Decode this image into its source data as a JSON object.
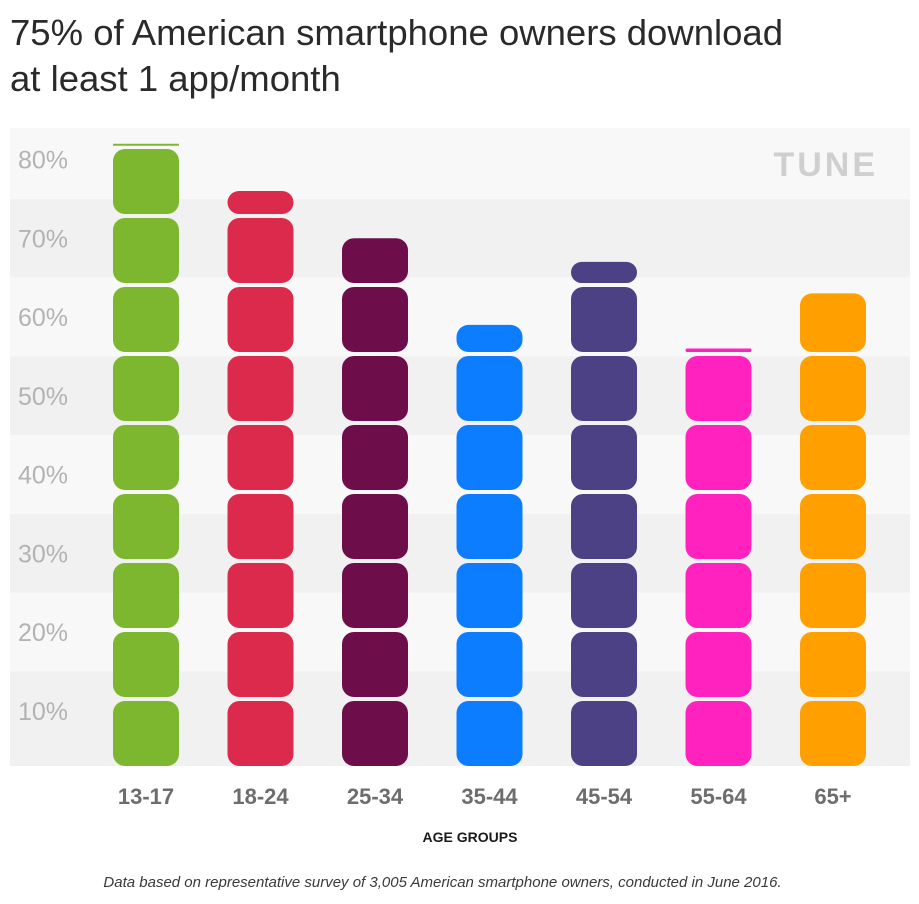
{
  "title_lines": [
    "75% of American smartphone owners download",
    "at least 1 app/month"
  ],
  "brand": "TUNE",
  "footnote": "Data based on representative survey of 3,005 American smartphone owners, conducted in June 2016.",
  "chart_data": {
    "type": "bar",
    "title": "75% of American smartphone owners download at least 1 app/month",
    "xlabel": "AGE GROUPS",
    "ylabel": "",
    "categories": [
      "13-17",
      "18-24",
      "25-34",
      "35-44",
      "45-54",
      "55-64",
      "65+"
    ],
    "values": [
      82,
      76,
      70,
      59,
      67,
      56,
      63
    ],
    "colors": [
      "#7db72f",
      "#db2a4b",
      "#6d0e4b",
      "#0d7dff",
      "#4c4185",
      "#ff22bf",
      "#ffa000"
    ],
    "ylim": [
      3,
      84
    ],
    "yticks": [
      10,
      20,
      30,
      40,
      50,
      60,
      70,
      80
    ],
    "ytick_labels": [
      "10%",
      "20%",
      "30%",
      "40%",
      "50%",
      "60%",
      "70%",
      "80%"
    ],
    "grid": "alternating bands",
    "legend": "none"
  }
}
